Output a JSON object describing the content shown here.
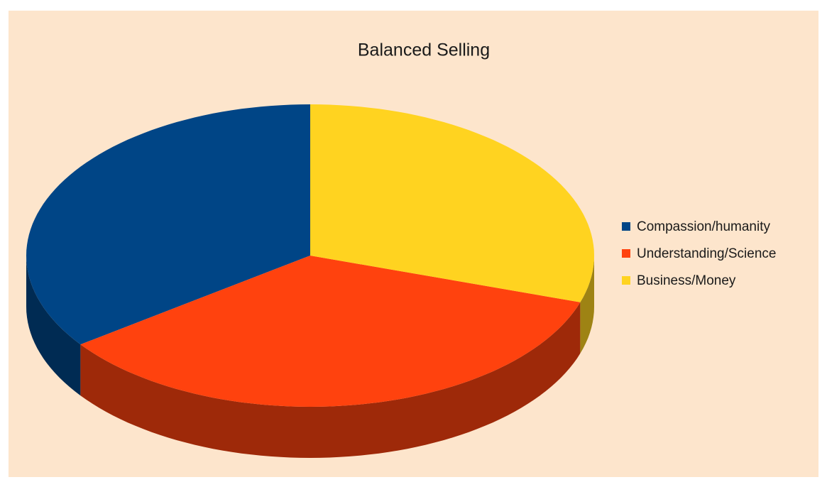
{
  "chart_data": {
    "type": "pie",
    "title": "Balanced Selling",
    "categories": [
      "Compassion/humanity",
      "Understanding/Science",
      "Business/Money"
    ],
    "values": [
      35,
      35,
      30
    ],
    "colors": [
      "#004586",
      "#ff420e",
      "#ffd320"
    ],
    "background": "#fde5cc",
    "legend": "right"
  }
}
